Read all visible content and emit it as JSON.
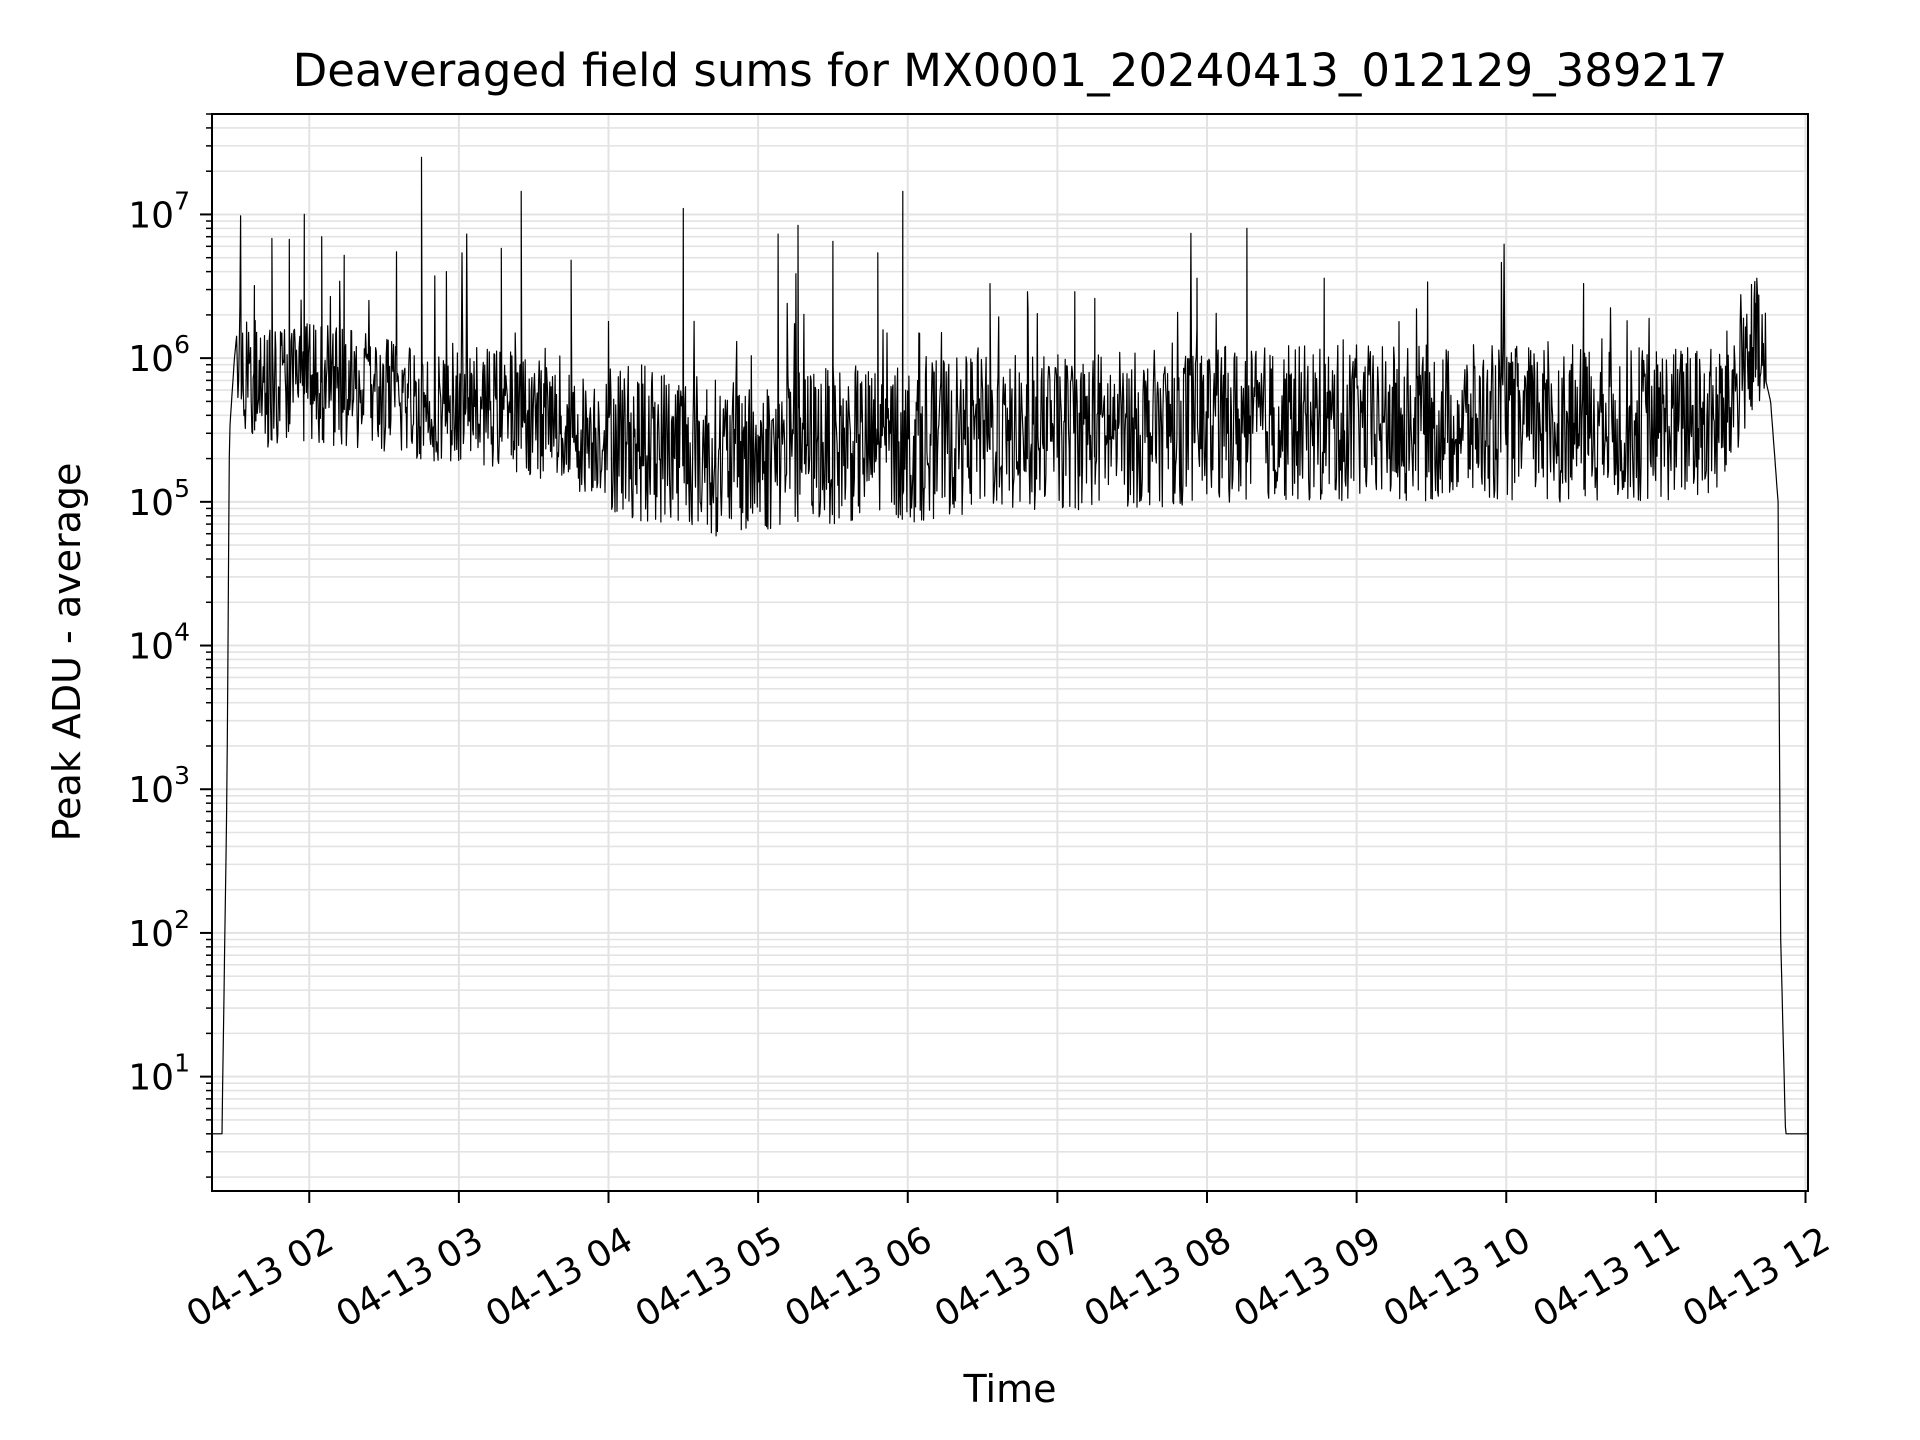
{
  "chart_data": {
    "type": "line",
    "title": "Deaveraged field sums for MX0001_20240413_012129_389217",
    "xlabel": "Time",
    "ylabel": "Peak ADU - average",
    "y_scale": "log",
    "grid": true,
    "grid_minor": true,
    "line_color": "#000000",
    "grid_color": "#e3e3e3",
    "xlim": [
      "2024-04-13 01:21",
      "2024-04-13 12:01"
    ],
    "ylim": [
      1.6,
      50000000
    ],
    "x_ticks": [
      {
        "value": "2024-04-13 02:00",
        "label": "04-13 02"
      },
      {
        "value": "2024-04-13 03:00",
        "label": "04-13 03"
      },
      {
        "value": "2024-04-13 04:00",
        "label": "04-13 04"
      },
      {
        "value": "2024-04-13 05:00",
        "label": "04-13 05"
      },
      {
        "value": "2024-04-13 06:00",
        "label": "04-13 06"
      },
      {
        "value": "2024-04-13 07:00",
        "label": "04-13 07"
      },
      {
        "value": "2024-04-13 08:00",
        "label": "04-13 08"
      },
      {
        "value": "2024-04-13 09:00",
        "label": "04-13 09"
      },
      {
        "value": "2024-04-13 10:00",
        "label": "04-13 10"
      },
      {
        "value": "2024-04-13 11:00",
        "label": "04-13 11"
      },
      {
        "value": "2024-04-13 12:00",
        "label": "04-13 12"
      }
    ],
    "y_ticks": [
      {
        "value": 10,
        "base": "10",
        "exp": "1"
      },
      {
        "value": 100,
        "base": "10",
        "exp": "2"
      },
      {
        "value": 1000,
        "base": "10",
        "exp": "3"
      },
      {
        "value": 10000,
        "base": "10",
        "exp": "4"
      },
      {
        "value": 100000,
        "base": "10",
        "exp": "5"
      },
      {
        "value": 1000000,
        "base": "10",
        "exp": "6"
      },
      {
        "value": 10000000,
        "base": "10",
        "exp": "7"
      }
    ],
    "series": [
      {
        "x": [
          "2024-04-13 01:21",
          "2024-04-13 01:24",
          "2024-04-13 01:25",
          "2024-04-13 01:27",
          "2024-04-13 01:28",
          "2024-04-13 01:30",
          "2024-04-13 01:31",
          "2024-04-13 01:34",
          "2024-04-13 01:40",
          "2024-04-13 01:50",
          "2024-04-13 02:00",
          "2024-04-13 02:15",
          "2024-04-13 02:30",
          "2024-04-13 02:45",
          "2024-04-13 03:00",
          "2024-04-13 03:15",
          "2024-04-13 03:30",
          "2024-04-13 03:45",
          "2024-04-13 04:00",
          "2024-04-13 04:15",
          "2024-04-13 04:30",
          "2024-04-13 04:45",
          "2024-04-13 05:00",
          "2024-04-13 05:15",
          "2024-04-13 05:30",
          "2024-04-13 05:45",
          "2024-04-13 06:00",
          "2024-04-13 06:15",
          "2024-04-13 06:30",
          "2024-04-13 06:45",
          "2024-04-13 07:00",
          "2024-04-13 07:15",
          "2024-04-13 07:30",
          "2024-04-13 07:45",
          "2024-04-13 08:00",
          "2024-04-13 08:15",
          "2024-04-13 08:30",
          "2024-04-13 08:45",
          "2024-04-13 09:00",
          "2024-04-13 09:15",
          "2024-04-13 09:30",
          "2024-04-13 09:45",
          "2024-04-13 10:00",
          "2024-04-13 10:15",
          "2024-04-13 10:30",
          "2024-04-13 10:45",
          "2024-04-13 11:00",
          "2024-04-13 11:15",
          "2024-04-13 11:25",
          "2024-04-13 11:30",
          "2024-04-13 11:36",
          "2024-04-13 11:42",
          "2024-04-13 11:46",
          "2024-04-13 11:49",
          "2024-04-13 11:50",
          "2024-04-13 11:52",
          "2024-04-13 12:00",
          "2024-04-13 12:01"
        ],
        "values": [
          4,
          4,
          4,
          1000,
          300000,
          1000000,
          1500000,
          800000,
          600000,
          700000,
          700000,
          600000,
          550000,
          500000,
          500000,
          450000,
          400000,
          300000,
          300000,
          250000,
          250000,
          200000,
          200000,
          250000,
          250000,
          250000,
          250000,
          280000,
          300000,
          300000,
          300000,
          320000,
          320000,
          330000,
          350000,
          350000,
          350000,
          350000,
          350000,
          350000,
          350000,
          350000,
          350000,
          350000,
          350000,
          350000,
          350000,
          350000,
          350000,
          500000,
          1100000,
          1000000,
          500000,
          100000,
          100,
          4,
          4,
          4
        ]
      }
    ],
    "spikes": [
      {
        "x": "2024-04-13 01:38",
        "y": 3200000
      },
      {
        "x": "2024-04-13 01:45",
        "y": 6800000
      },
      {
        "x": "2024-04-13 01:52",
        "y": 6700000
      },
      {
        "x": "2024-04-13 01:58",
        "y": 10000000
      },
      {
        "x": "2024-04-13 02:05",
        "y": 7000000
      },
      {
        "x": "2024-04-13 02:14",
        "y": 5200000
      },
      {
        "x": "2024-04-13 02:35",
        "y": 5500000
      },
      {
        "x": "2024-04-13 02:45",
        "y": 25000000
      },
      {
        "x": "2024-04-13 02:55",
        "y": 4000000
      },
      {
        "x": "2024-04-13 03:17",
        "y": 5800000
      },
      {
        "x": "2024-04-13 03:25",
        "y": 14500000
      },
      {
        "x": "2024-04-13 03:45",
        "y": 4800000
      },
      {
        "x": "2024-04-13 04:00",
        "y": 1800000
      },
      {
        "x": "2024-04-13 04:30",
        "y": 11000000
      },
      {
        "x": "2024-04-13 05:08",
        "y": 7300000
      },
      {
        "x": "2024-04-13 05:16",
        "y": 8400000
      },
      {
        "x": "2024-04-13 05:30",
        "y": 6500000
      },
      {
        "x": "2024-04-13 05:48",
        "y": 5400000
      },
      {
        "x": "2024-04-13 05:58",
        "y": 14500000
      },
      {
        "x": "2024-04-13 06:33",
        "y": 3300000
      },
      {
        "x": "2024-04-13 06:48",
        "y": 2900000
      },
      {
        "x": "2024-04-13 07:07",
        "y": 2900000
      },
      {
        "x": "2024-04-13 07:15",
        "y": 2600000
      },
      {
        "x": "2024-04-13 07:56",
        "y": 3600000
      },
      {
        "x": "2024-04-13 08:16",
        "y": 8000000
      },
      {
        "x": "2024-04-13 08:47",
        "y": 3600000
      },
      {
        "x": "2024-04-13 09:24",
        "y": 2200000
      },
      {
        "x": "2024-04-13 10:31",
        "y": 3300000
      },
      {
        "x": "2024-04-13 11:40",
        "y": 2400000
      }
    ]
  }
}
